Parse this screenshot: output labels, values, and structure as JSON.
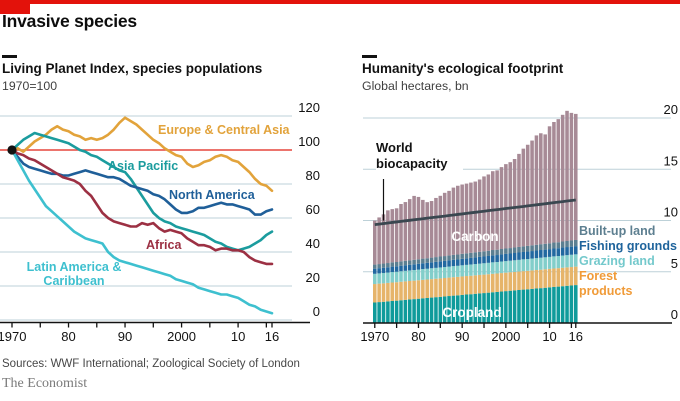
{
  "page": {
    "title": "Invasive species",
    "source": "Sources: WWF International; Zoological Society of London",
    "brand": "The Economist",
    "accent_red": "#e3120b"
  },
  "chart_data": [
    {
      "type": "line",
      "title": "Living Planet Index, species populations",
      "subtitle": "1970=100",
      "x_range": [
        1970,
        2016
      ],
      "x_points": 47,
      "ylim": [
        0,
        120
      ],
      "yticks": [
        0,
        20,
        40,
        60,
        80,
        100,
        120
      ],
      "xticks": {
        "years": [
          1970,
          1980,
          1990,
          2000,
          2010,
          2016
        ],
        "labels": [
          "1970",
          "80",
          "90",
          "2000",
          "10",
          "16"
        ]
      },
      "grid_color": "#bdd1d8",
      "axis_color": "#121212",
      "baseline": {
        "value": 100,
        "color": "#e6473d"
      },
      "start_marker": {
        "year": 1970,
        "value": 100,
        "color": "#121212"
      },
      "series": [
        {
          "name": "Europe & Central Asia",
          "color": "#e2a33b",
          "values": [
            100,
            101,
            99,
            102,
            105,
            107,
            109,
            112,
            114,
            112,
            111,
            109,
            108,
            106,
            107,
            106,
            107,
            109,
            112,
            116,
            119,
            117,
            115,
            112,
            109,
            106,
            104,
            101,
            99,
            97,
            96,
            92,
            90,
            91,
            93,
            94,
            96,
            97,
            96,
            94,
            93,
            90,
            87,
            83,
            80,
            79,
            76
          ]
        },
        {
          "name": "Asia Pacific",
          "color": "#1b9c9e",
          "values": [
            100,
            103,
            106,
            108,
            110,
            109,
            108,
            107,
            106,
            105,
            104,
            102,
            100,
            99,
            97,
            96,
            94,
            92,
            90,
            88,
            87,
            83,
            78,
            73,
            68,
            63,
            60,
            58,
            57,
            55,
            54,
            53,
            52,
            51,
            50,
            48,
            46,
            45,
            43,
            42,
            41,
            42,
            43,
            45,
            47,
            50,
            52
          ]
        },
        {
          "name": "North America",
          "color": "#1f5f99",
          "values": [
            100,
            96,
            92,
            90,
            89,
            88,
            87,
            86,
            86,
            85,
            85,
            86,
            87,
            88,
            87,
            86,
            85,
            84,
            84,
            83,
            81,
            79,
            78,
            77,
            76,
            74,
            73,
            71,
            68,
            65,
            63,
            63,
            64,
            66,
            66,
            67,
            68,
            69,
            68,
            68,
            67,
            66,
            65,
            62,
            62,
            64,
            65
          ]
        },
        {
          "name": "Africa",
          "color": "#9c3043",
          "values": [
            100,
            98,
            97,
            95,
            94,
            92,
            90,
            88,
            86,
            84,
            83,
            82,
            80,
            76,
            73,
            68,
            63,
            60,
            58,
            57,
            56,
            55,
            55,
            57,
            56,
            57,
            54,
            52,
            53,
            52,
            51,
            48,
            46,
            44,
            44,
            43,
            41,
            42,
            42,
            41,
            41,
            40,
            37,
            35,
            34,
            33,
            33
          ]
        },
        {
          "name": "Latin America & Caribbean",
          "color": "#3ec0cf",
          "values": [
            100,
            94,
            88,
            82,
            77,
            72,
            67,
            64,
            61,
            58,
            55,
            52,
            50,
            48,
            47,
            46,
            45,
            40,
            37,
            35,
            34,
            33,
            32,
            31,
            30,
            29,
            28,
            27,
            26,
            24,
            23,
            22,
            21,
            19,
            18,
            17,
            16,
            15,
            15,
            14,
            13,
            11,
            9,
            8,
            6,
            5,
            4
          ]
        }
      ]
    },
    {
      "type": "area",
      "stacked": true,
      "title": "Humanity's ecological footprint",
      "subtitle": "Global hectares, bn",
      "x_range": [
        1970,
        2016
      ],
      "x_points": 47,
      "ylim": [
        0,
        20
      ],
      "yticks": [
        0,
        5,
        10,
        15,
        20
      ],
      "xticks": {
        "years": [
          1970,
          1980,
          1990,
          2000,
          2010,
          2016
        ],
        "labels": [
          "1970",
          "80",
          "90",
          "2000",
          "10",
          "16"
        ]
      },
      "grid_color": "#bdd1d8",
      "axis_color": "#121212",
      "series": [
        {
          "name": "Cropland",
          "color": "#0f9b9b",
          "label_color": "#ffffff",
          "values": [
            2.0,
            2.04,
            2.07,
            2.11,
            2.15,
            2.18,
            2.22,
            2.26,
            2.3,
            2.33,
            2.37,
            2.41,
            2.44,
            2.48,
            2.52,
            2.55,
            2.59,
            2.63,
            2.67,
            2.7,
            2.74,
            2.78,
            2.81,
            2.85,
            2.89,
            2.92,
            2.96,
            3.0,
            3.03,
            3.07,
            3.11,
            3.15,
            3.18,
            3.22,
            3.26,
            3.29,
            3.33,
            3.37,
            3.4,
            3.44,
            3.48,
            3.52,
            3.55,
            3.59,
            3.63,
            3.66,
            3.7
          ]
        },
        {
          "name": "Forest products",
          "color": "#e6b46a",
          "label_color": "#f09b38",
          "values": [
            1.8,
            1.8,
            1.8,
            1.8,
            1.8,
            1.8,
            1.8,
            1.8,
            1.8,
            1.8,
            1.8,
            1.8,
            1.8,
            1.8,
            1.8,
            1.8,
            1.8,
            1.8,
            1.8,
            1.8,
            1.8,
            1.8,
            1.8,
            1.8,
            1.8,
            1.8,
            1.8,
            1.8,
            1.8,
            1.8,
            1.8,
            1.8,
            1.8,
            1.8,
            1.8,
            1.8,
            1.8,
            1.8,
            1.8,
            1.8,
            1.8,
            1.8,
            1.8,
            1.8,
            1.8,
            1.8,
            1.8
          ]
        },
        {
          "name": "Grazing land",
          "color": "#82ceca",
          "label_color": "#74c9cc",
          "values": [
            1.0,
            1.0,
            1.01,
            1.01,
            1.02,
            1.02,
            1.03,
            1.03,
            1.03,
            1.04,
            1.04,
            1.05,
            1.05,
            1.06,
            1.06,
            1.07,
            1.07,
            1.07,
            1.08,
            1.08,
            1.09,
            1.09,
            1.1,
            1.1,
            1.1,
            1.11,
            1.11,
            1.12,
            1.12,
            1.13,
            1.13,
            1.13,
            1.14,
            1.14,
            1.15,
            1.15,
            1.16,
            1.16,
            1.17,
            1.17,
            1.17,
            1.18,
            1.18,
            1.19,
            1.19,
            1.2,
            1.2
          ]
        },
        {
          "name": "Fishing grounds",
          "color": "#2268a0",
          "label_color": "#1f649c",
          "values": [
            0.5,
            0.51,
            0.51,
            0.52,
            0.53,
            0.53,
            0.54,
            0.55,
            0.55,
            0.56,
            0.57,
            0.57,
            0.58,
            0.58,
            0.59,
            0.6,
            0.6,
            0.61,
            0.62,
            0.62,
            0.63,
            0.64,
            0.64,
            0.65,
            0.66,
            0.66,
            0.67,
            0.68,
            0.68,
            0.69,
            0.7,
            0.7,
            0.71,
            0.72,
            0.72,
            0.73,
            0.73,
            0.74,
            0.75,
            0.75,
            0.76,
            0.77,
            0.77,
            0.78,
            0.79,
            0.79,
            0.8
          ]
        },
        {
          "name": "Built-up land",
          "color": "#5c7f91",
          "label_color": "#5d7f90",
          "values": [
            0.4,
            0.4,
            0.41,
            0.41,
            0.42,
            0.42,
            0.43,
            0.43,
            0.43,
            0.44,
            0.44,
            0.45,
            0.45,
            0.46,
            0.46,
            0.47,
            0.47,
            0.47,
            0.48,
            0.48,
            0.49,
            0.49,
            0.5,
            0.5,
            0.5,
            0.51,
            0.51,
            0.52,
            0.52,
            0.53,
            0.53,
            0.53,
            0.54,
            0.54,
            0.55,
            0.55,
            0.56,
            0.56,
            0.57,
            0.57,
            0.57,
            0.58,
            0.58,
            0.59,
            0.59,
            0.6,
            0.6
          ]
        },
        {
          "name": "Carbon",
          "color": "#a78a96",
          "label_color": "#ffffff",
          "values": [
            4.3,
            4.55,
            4.8,
            5.14,
            5.19,
            5.24,
            5.59,
            5.73,
            5.98,
            6.23,
            6.08,
            5.73,
            5.47,
            5.52,
            5.77,
            5.92,
            6.17,
            6.31,
            6.56,
            6.71,
            6.76,
            6.8,
            6.85,
            6.9,
            7.05,
            7.3,
            7.44,
            7.69,
            7.74,
            7.99,
            8.23,
            8.38,
            8.63,
            9.08,
            9.53,
            9.87,
            10.22,
            10.67,
            10.82,
            10.67,
            11.41,
            11.76,
            12.01,
            12.36,
            12.7,
            12.45,
            12.3
          ]
        }
      ],
      "line_overlay": {
        "name": "World biocapacity",
        "color": "#3a4750",
        "values": [
          9.6,
          9.65,
          9.7,
          9.76,
          9.81,
          9.86,
          9.91,
          9.97,
          10.02,
          10.07,
          10.12,
          10.17,
          10.23,
          10.28,
          10.33,
          10.38,
          10.43,
          10.49,
          10.54,
          10.59,
          10.64,
          10.7,
          10.75,
          10.8,
          10.85,
          10.9,
          10.96,
          11.01,
          11.06,
          11.11,
          11.17,
          11.22,
          11.27,
          11.32,
          11.37,
          11.43,
          11.48,
          11.53,
          11.58,
          11.63,
          11.69,
          11.74,
          11.79,
          11.84,
          11.9,
          11.95,
          12.0
        ]
      }
    }
  ]
}
